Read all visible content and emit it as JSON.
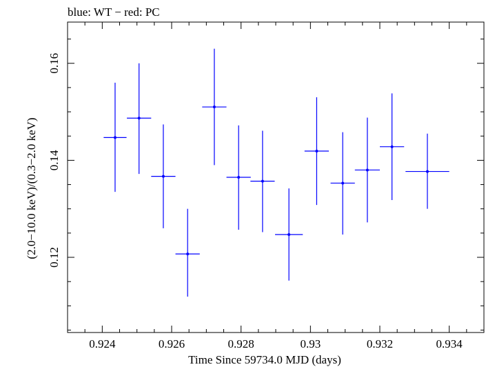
{
  "chart_data": {
    "type": "scatter",
    "title": "blue: WT − red: PC",
    "xlabel": "Time Since 59734.0 MJD (days)",
    "ylabel": "(2.0−10.0 keV)/(0.3−2.0 keV)",
    "xlim": [
      0.923,
      0.935
    ],
    "ylim": [
      0.1045,
      0.1685
    ],
    "xticks": [
      0.924,
      0.926,
      0.928,
      0.93,
      0.932,
      0.934
    ],
    "xtick_labels": [
      "0.924",
      "0.926",
      "0.928",
      "0.93",
      "0.932",
      "0.934"
    ],
    "yticks": [
      0.12,
      0.14,
      0.16
    ],
    "ytick_labels": [
      "0.12",
      "0.14",
      "0.16"
    ],
    "grid": false,
    "series": [
      {
        "color": "#0000ff",
        "points": [
          {
            "x": 0.92437,
            "xerr": 0.00033,
            "y": 0.1447,
            "yerr_lo": 0.0112,
            "yerr_hi": 0.0113
          },
          {
            "x": 0.92506,
            "xerr": 0.00035,
            "y": 0.1487,
            "yerr_lo": 0.0115,
            "yerr_hi": 0.0113
          },
          {
            "x": 0.92576,
            "xerr": 0.00035,
            "y": 0.1367,
            "yerr_lo": 0.0107,
            "yerr_hi": 0.0107
          },
          {
            "x": 0.92646,
            "xerr": 0.00035,
            "y": 0.1207,
            "yerr_lo": 0.0088,
            "yerr_hi": 0.0093
          },
          {
            "x": 0.92723,
            "xerr": 0.00035,
            "y": 0.151,
            "yerr_lo": 0.012,
            "yerr_hi": 0.012
          },
          {
            "x": 0.92793,
            "xerr": 0.00035,
            "y": 0.1365,
            "yerr_lo": 0.0108,
            "yerr_hi": 0.0107
          },
          {
            "x": 0.92862,
            "xerr": 0.00035,
            "y": 0.1357,
            "yerr_lo": 0.0105,
            "yerr_hi": 0.0104
          },
          {
            "x": 0.92938,
            "xerr": 0.0004,
            "y": 0.1247,
            "yerr_lo": 0.0095,
            "yerr_hi": 0.0095
          },
          {
            "x": 0.93018,
            "xerr": 0.00035,
            "y": 0.1419,
            "yerr_lo": 0.0111,
            "yerr_hi": 0.0111
          },
          {
            "x": 0.93093,
            "xerr": 0.00035,
            "y": 0.1353,
            "yerr_lo": 0.0106,
            "yerr_hi": 0.0105
          },
          {
            "x": 0.93164,
            "xerr": 0.00036,
            "y": 0.138,
            "yerr_lo": 0.0108,
            "yerr_hi": 0.0108
          },
          {
            "x": 0.93235,
            "xerr": 0.00035,
            "y": 0.1428,
            "yerr_lo": 0.011,
            "yerr_hi": 0.011
          },
          {
            "x": 0.93337,
            "xerr": 0.00063,
            "y": 0.1377,
            "yerr_lo": 0.0077,
            "yerr_hi": 0.0078
          }
        ]
      }
    ]
  }
}
